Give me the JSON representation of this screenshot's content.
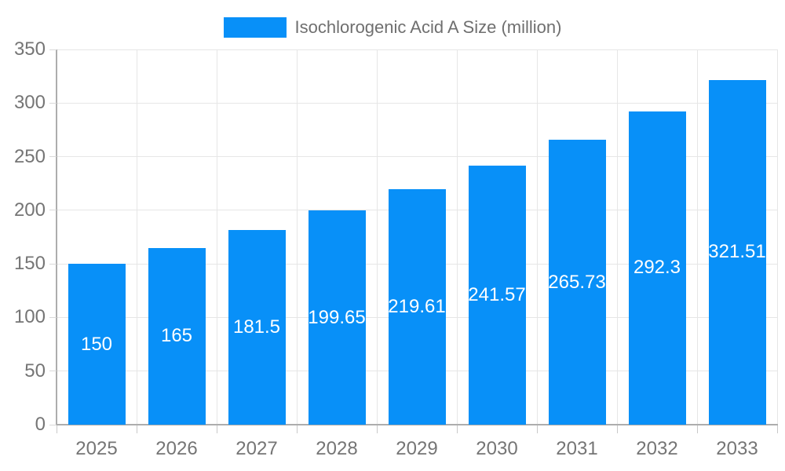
{
  "chart_data": {
    "type": "bar",
    "title": "Isochlorogenic Acid A Size (million)",
    "categories": [
      "2025",
      "2026",
      "2027",
      "2028",
      "2029",
      "2030",
      "2031",
      "2032",
      "2033"
    ],
    "series": [
      {
        "name": "Isochlorogenic Acid A Size (million)",
        "values": [
          150,
          165,
          181.5,
          199.65,
          219.61,
          241.57,
          265.73,
          292.3,
          321.51
        ]
      }
    ],
    "value_labels": [
      "150",
      "165",
      "181.5",
      "199.65",
      "219.61",
      "241.57",
      "265.73",
      "292.3",
      "321.51"
    ],
    "xlabel": "",
    "ylabel": "",
    "ylim": [
      0,
      350
    ],
    "yticks": [
      0,
      50,
      100,
      150,
      200,
      250,
      300,
      350
    ],
    "grid": "horizontal-and-vertical",
    "legend_position": "top-center",
    "colors": {
      "bar": "#0890f8",
      "bar_value_text": "#ffffff",
      "axis_text": "#757575",
      "legend_text": "#6f6f6f",
      "grid_line": "#e6e6e6",
      "axis_line": "#adadad"
    }
  }
}
